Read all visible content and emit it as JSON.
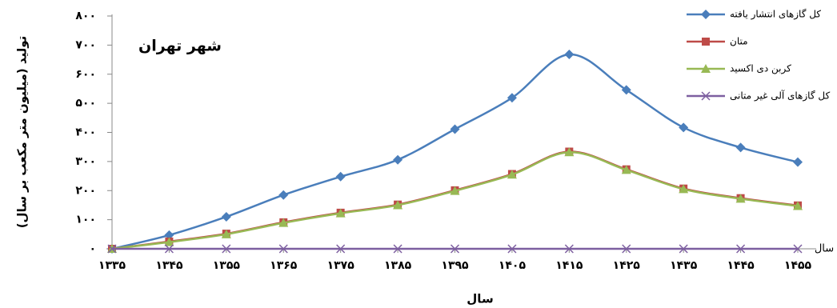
{
  "chart_data": {
    "type": "line",
    "title": "شهر تهران",
    "y_label": "تولید (میلیون متر مکعب بر سال)",
    "x_label": "سال",
    "x_axis_end_label": "سال",
    "categories": [
      "۱۳۳۵",
      "۱۳۴۵",
      "۱۳۵۵",
      "۱۳۶۵",
      "۱۳۷۵",
      "۱۳۸۵",
      "۱۳۹۵",
      "۱۴۰۵",
      "۱۴۱۵",
      "۱۴۲۵",
      "۱۴۳۵",
      "۱۴۴۵",
      "۱۴۵۵"
    ],
    "ylim": [
      0,
      800
    ],
    "yticks": [
      {
        "value": 0,
        "label": "۰"
      },
      {
        "value": 100,
        "label": "۱۰۰"
      },
      {
        "value": 200,
        "label": "۲۰۰"
      },
      {
        "value": 300,
        "label": "۳۰۰"
      },
      {
        "value": 400,
        "label": "۴۰۰"
      },
      {
        "value": 500,
        "label": "۵۰۰"
      },
      {
        "value": 600,
        "label": "۶۰۰"
      },
      {
        "value": 700,
        "label": "۷۰۰"
      },
      {
        "value": 800,
        "label": "۸۰۰"
      }
    ],
    "series": [
      {
        "name": "کل گازهای انتشار یافته",
        "color": "#4a7ebb",
        "marker": "diamond",
        "values": [
          0,
          47,
          110,
          185,
          248,
          306,
          411,
          519,
          668,
          546,
          417,
          348,
          298
        ]
      },
      {
        "name": "متان",
        "color": "#be4b48",
        "marker": "square",
        "values": [
          0,
          25,
          52,
          91,
          124,
          152,
          201,
          257,
          334,
          273,
          207,
          174,
          149
        ]
      },
      {
        "name": "کربن دی اکسید",
        "color": "#98b954",
        "marker": "triangle",
        "values": [
          0,
          23,
          50,
          89,
          122,
          150,
          199,
          255,
          332,
          271,
          205,
          172,
          147
        ]
      },
      {
        "name": "کل گازهای آلی غیر متانی",
        "color": "#7d5fa0",
        "marker": "x",
        "values": [
          0,
          0,
          0,
          0,
          0,
          0,
          0,
          0,
          0,
          0,
          0,
          0,
          0
        ]
      }
    ]
  }
}
